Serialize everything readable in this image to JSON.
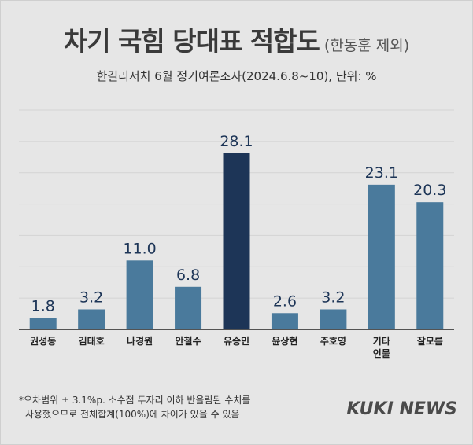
{
  "header": {
    "title": "차기 국힘 당대표 적합도",
    "title_note": "(한동훈 제외)",
    "subtitle": "한길리서치 6월 정기여론조사(2024.6.8~10), 단위: %"
  },
  "footnote": {
    "line1": "*오차범위 ± 3.1%p. 소수점 두자리 이하 반올림된 수치를",
    "line2": "사용했으므로 전체합계(100%)에 차이가 있을 수 있음"
  },
  "logo": "KUKI NEWS",
  "colors": {
    "bar": "#4a7a9c",
    "highlight": "#1d3557",
    "value_text": "#1d3557",
    "grid": "#d4d4d4",
    "background": "#e6e6e6"
  },
  "chart_data": {
    "type": "bar",
    "categories": [
      "권성동",
      "김태호",
      "나경원",
      "안철수",
      "유승민",
      "윤상현",
      "주호영",
      "기타\n인물",
      "잘모름"
    ],
    "values": [
      1.8,
      3.2,
      11.0,
      6.8,
      28.1,
      2.6,
      3.2,
      23.1,
      20.3
    ],
    "value_labels": [
      "1.8",
      "3.2",
      "11.0",
      "6.8",
      "28.1",
      "2.6",
      "3.2",
      "23.1",
      "20.3"
    ],
    "highlight_index": 4,
    "ylim": [
      0,
      35
    ],
    "grid": true,
    "title": "차기 국힘 당대표 적합도",
    "xlabel": "",
    "ylabel": ""
  }
}
